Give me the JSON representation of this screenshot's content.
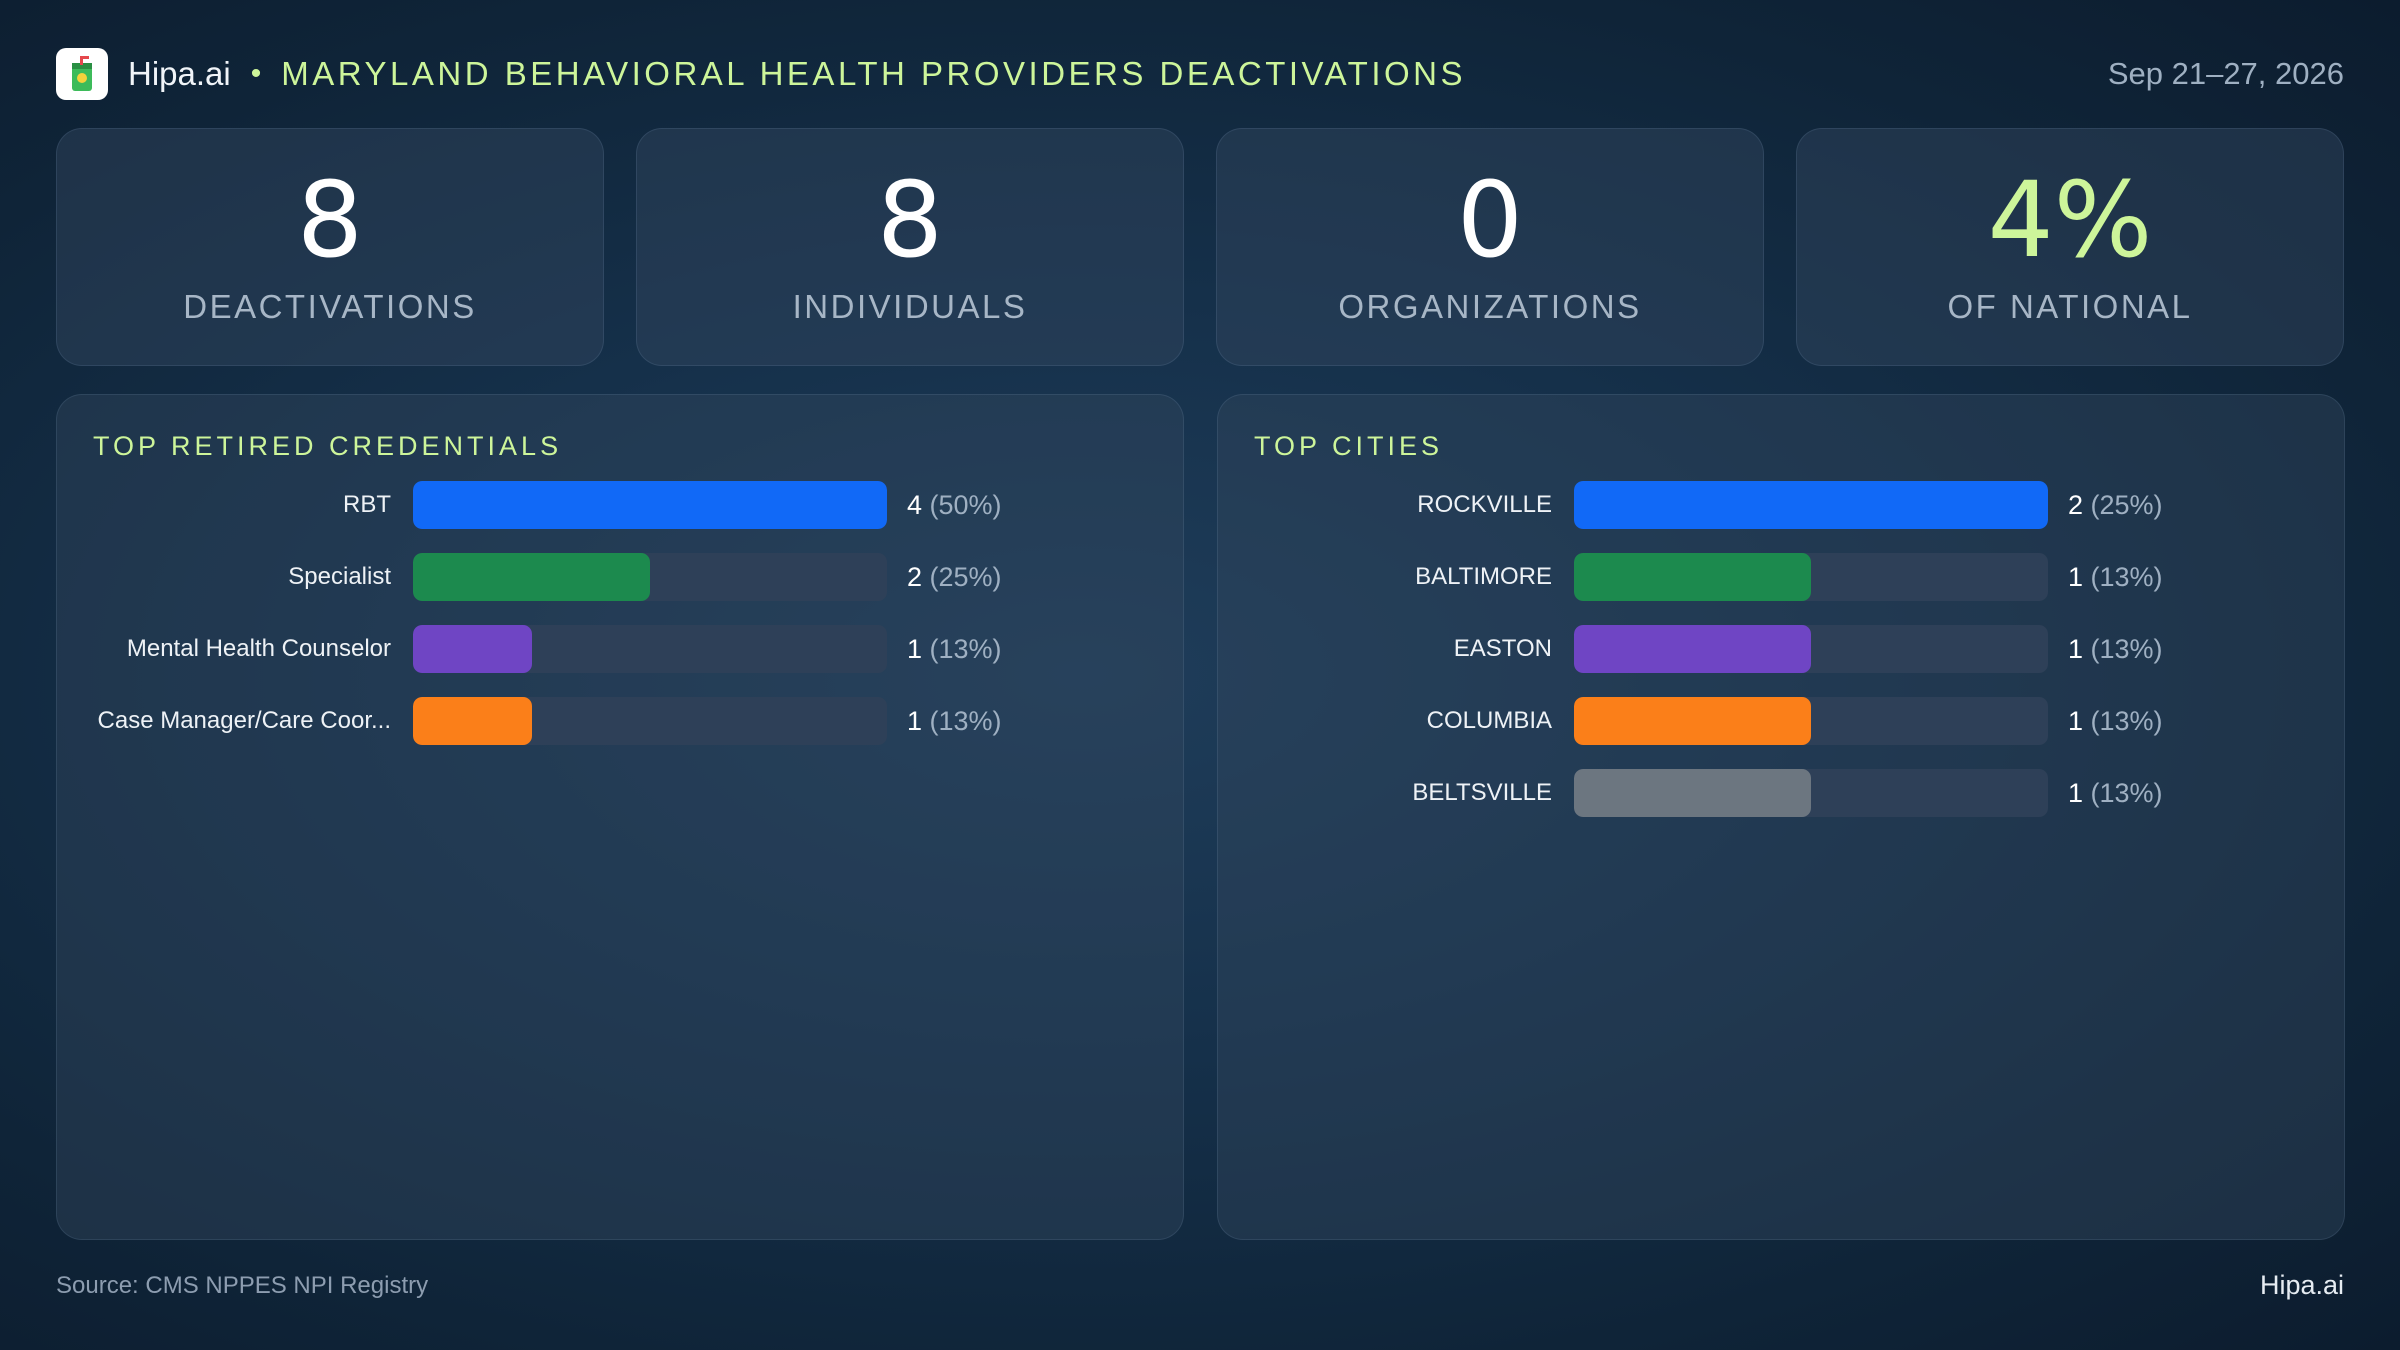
{
  "header": {
    "brand": "Hipa.ai",
    "separator": "•",
    "title": "MARYLAND BEHAVIORAL HEALTH PROVIDERS DEACTIVATIONS",
    "date_range": "Sep 21–27, 2026",
    "logo_icon": "beverage-cup-icon"
  },
  "kpis": [
    {
      "value": "8",
      "label": "DEACTIVATIONS"
    },
    {
      "value": "8",
      "label": "INDIVIDUALS"
    },
    {
      "value": "0",
      "label": "ORGANIZATIONS"
    },
    {
      "value": "4%",
      "label": "OF NATIONAL",
      "accent": "#cdf59a"
    }
  ],
  "chart_data": [
    {
      "type": "bar",
      "orientation": "horizontal",
      "title": "TOP RETIRED CREDENTIALS",
      "categories": [
        "RBT",
        "Specialist",
        "Mental Health Counselor",
        "Case Manager/Care Coor..."
      ],
      "values": [
        4,
        2,
        1,
        1
      ],
      "percent_labels": [
        "(50%)",
        "(25%)",
        "(13%)",
        "(13%)"
      ],
      "xlim": [
        0,
        4
      ],
      "colors": [
        "#1169f7",
        "#1c8a4e",
        "#6f45c4",
        "#fb7f19"
      ]
    },
    {
      "type": "bar",
      "orientation": "horizontal",
      "title": "TOP CITIES",
      "categories": [
        "ROCKVILLE",
        "BALTIMORE",
        "EASTON",
        "COLUMBIA",
        "BELTSVILLE"
      ],
      "values": [
        2,
        1,
        1,
        1,
        1
      ],
      "percent_labels": [
        "(25%)",
        "(13%)",
        "(13%)",
        "(13%)",
        "(13%)"
      ],
      "xlim": [
        0,
        2
      ],
      "colors": [
        "#1169f7",
        "#1c8a4e",
        "#6f45c4",
        "#fb7f19",
        "#6c7680"
      ]
    }
  ],
  "footer": {
    "source": "Source: CMS NPPES NPI Registry",
    "brand": "Hipa.ai"
  }
}
